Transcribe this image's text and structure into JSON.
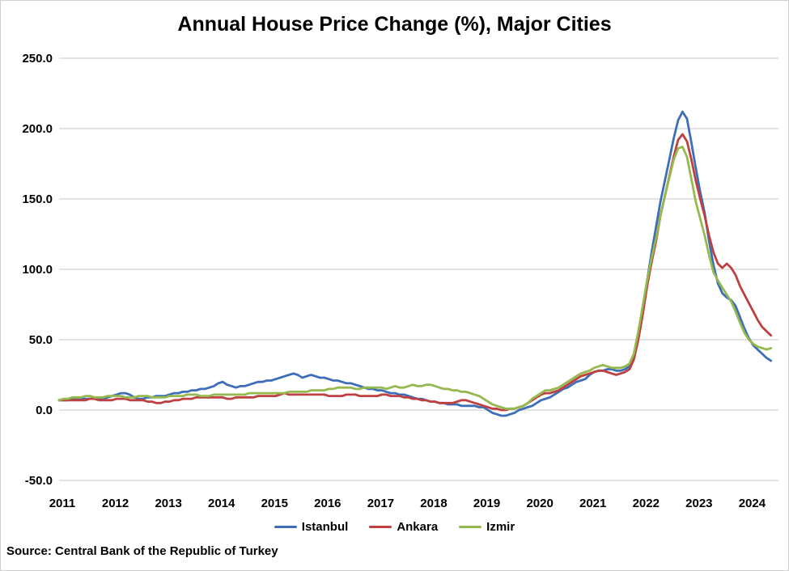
{
  "chart": {
    "title": "Annual House Price Change (%), Major Cities",
    "source": "Source: Central Bank of the Republic of Turkey"
  },
  "chart_data": {
    "type": "line",
    "title": "Annual House Price Change (%), Major Cities",
    "xlabel": "",
    "ylabel": "",
    "x_start_year": 2011,
    "x_frequency": "monthly",
    "x_end": "2024-06",
    "x_tick_labels": [
      "2011",
      "2012",
      "2013",
      "2014",
      "2015",
      "2016",
      "2017",
      "2018",
      "2019",
      "2020",
      "2021",
      "2022",
      "2023",
      "2024"
    ],
    "y_ticks": [
      250,
      200,
      150,
      100,
      50,
      0,
      -50
    ],
    "y_tick_labels": [
      "250.0",
      "200.0",
      "150.0",
      "100.0",
      "50.0",
      "0.0",
      "-50.0"
    ],
    "ylim": [
      -50,
      250
    ],
    "grid": "horizontal-only",
    "gridline_color": "#dadada",
    "legend_position": "bottom",
    "series": [
      {
        "name": "Istanbul",
        "color": "#3e6eb8",
        "values": [
          7,
          7,
          7,
          8,
          8,
          8,
          8,
          8,
          8,
          8,
          8,
          9,
          10,
          11,
          12,
          12,
          11,
          9,
          8,
          8,
          9,
          9,
          10,
          10,
          10,
          11,
          12,
          12,
          13,
          13,
          14,
          14,
          15,
          15,
          16,
          17,
          19,
          20,
          18,
          17,
          16,
          17,
          17,
          18,
          19,
          20,
          20,
          21,
          21,
          22,
          23,
          24,
          25,
          26,
          25,
          23,
          24,
          25,
          24,
          23,
          23,
          22,
          21,
          21,
          20,
          19,
          19,
          18,
          17,
          16,
          15,
          15,
          14,
          14,
          13,
          12,
          12,
          11,
          11,
          10,
          9,
          8,
          8,
          7,
          6,
          6,
          5,
          5,
          4,
          4,
          4,
          3,
          3,
          3,
          3,
          2,
          2,
          0,
          -2,
          -3,
          -4,
          -4,
          -3,
          -2,
          0,
          1,
          2,
          3,
          5,
          7,
          8,
          9,
          11,
          13,
          15,
          16,
          18,
          20,
          21,
          22,
          25,
          27,
          28,
          28,
          29,
          29,
          28,
          28,
          29,
          31,
          38,
          52,
          72,
          92,
          112,
          130,
          148,
          163,
          178,
          193,
          206,
          212,
          207,
          190,
          172,
          155,
          140,
          120,
          103,
          90,
          83,
          80,
          78,
          74,
          66,
          58,
          51,
          46,
          43,
          40,
          37,
          35
        ]
      },
      {
        "name": "Ankara",
        "color": "#be4040",
        "values": [
          7,
          7,
          7,
          7,
          7,
          7,
          7,
          8,
          8,
          7,
          7,
          7,
          7,
          8,
          8,
          8,
          7,
          7,
          7,
          7,
          6,
          6,
          5,
          5,
          6,
          6,
          7,
          7,
          8,
          8,
          8,
          9,
          9,
          9,
          9,
          9,
          9,
          9,
          8,
          8,
          9,
          9,
          9,
          9,
          9,
          10,
          10,
          10,
          10,
          10,
          11,
          12,
          11,
          11,
          11,
          11,
          11,
          11,
          11,
          11,
          11,
          10,
          10,
          10,
          10,
          11,
          11,
          11,
          10,
          10,
          10,
          10,
          10,
          11,
          11,
          10,
          10,
          10,
          9,
          9,
          8,
          8,
          7,
          7,
          6,
          6,
          5,
          5,
          5,
          5,
          6,
          7,
          7,
          6,
          5,
          4,
          3,
          2,
          1,
          1,
          0,
          0,
          1,
          1,
          2,
          3,
          5,
          7,
          9,
          11,
          12,
          12,
          13,
          14,
          16,
          18,
          20,
          22,
          24,
          25,
          26,
          27,
          28,
          28,
          27,
          26,
          25,
          26,
          27,
          29,
          36,
          50,
          68,
          88,
          105,
          120,
          138,
          152,
          166,
          180,
          192,
          196,
          191,
          178,
          163,
          150,
          138,
          124,
          112,
          104,
          101,
          104,
          101,
          96,
          88,
          82,
          76,
          70,
          64,
          59,
          56,
          53
        ]
      },
      {
        "name": "Izmir",
        "color": "#95b94e",
        "values": [
          7,
          8,
          8,
          9,
          9,
          9,
          10,
          10,
          9,
          9,
          9,
          10,
          10,
          10,
          10,
          9,
          9,
          9,
          10,
          10,
          10,
          9,
          9,
          9,
          9,
          10,
          10,
          10,
          10,
          11,
          11,
          11,
          10,
          10,
          10,
          11,
          11,
          11,
          11,
          11,
          11,
          11,
          11,
          12,
          12,
          12,
          12,
          12,
          12,
          12,
          12,
          12,
          13,
          13,
          13,
          13,
          13,
          14,
          14,
          14,
          14,
          15,
          15,
          16,
          16,
          16,
          16,
          15,
          15,
          16,
          16,
          16,
          16,
          16,
          15,
          16,
          17,
          16,
          16,
          17,
          18,
          17,
          17,
          18,
          18,
          17,
          16,
          15,
          15,
          14,
          14,
          13,
          13,
          12,
          11,
          10,
          8,
          6,
          4,
          3,
          2,
          1,
          1,
          1,
          2,
          3,
          5,
          8,
          10,
          12,
          14,
          14,
          15,
          16,
          18,
          20,
          22,
          24,
          26,
          27,
          28,
          30,
          31,
          32,
          31,
          30,
          30,
          30,
          31,
          33,
          40,
          56,
          74,
          92,
          108,
          122,
          138,
          152,
          165,
          178,
          186,
          187,
          180,
          164,
          148,
          136,
          124,
          110,
          98,
          92,
          87,
          82,
          77,
          70,
          62,
          55,
          50,
          47,
          45,
          44,
          43,
          44
        ]
      }
    ]
  }
}
